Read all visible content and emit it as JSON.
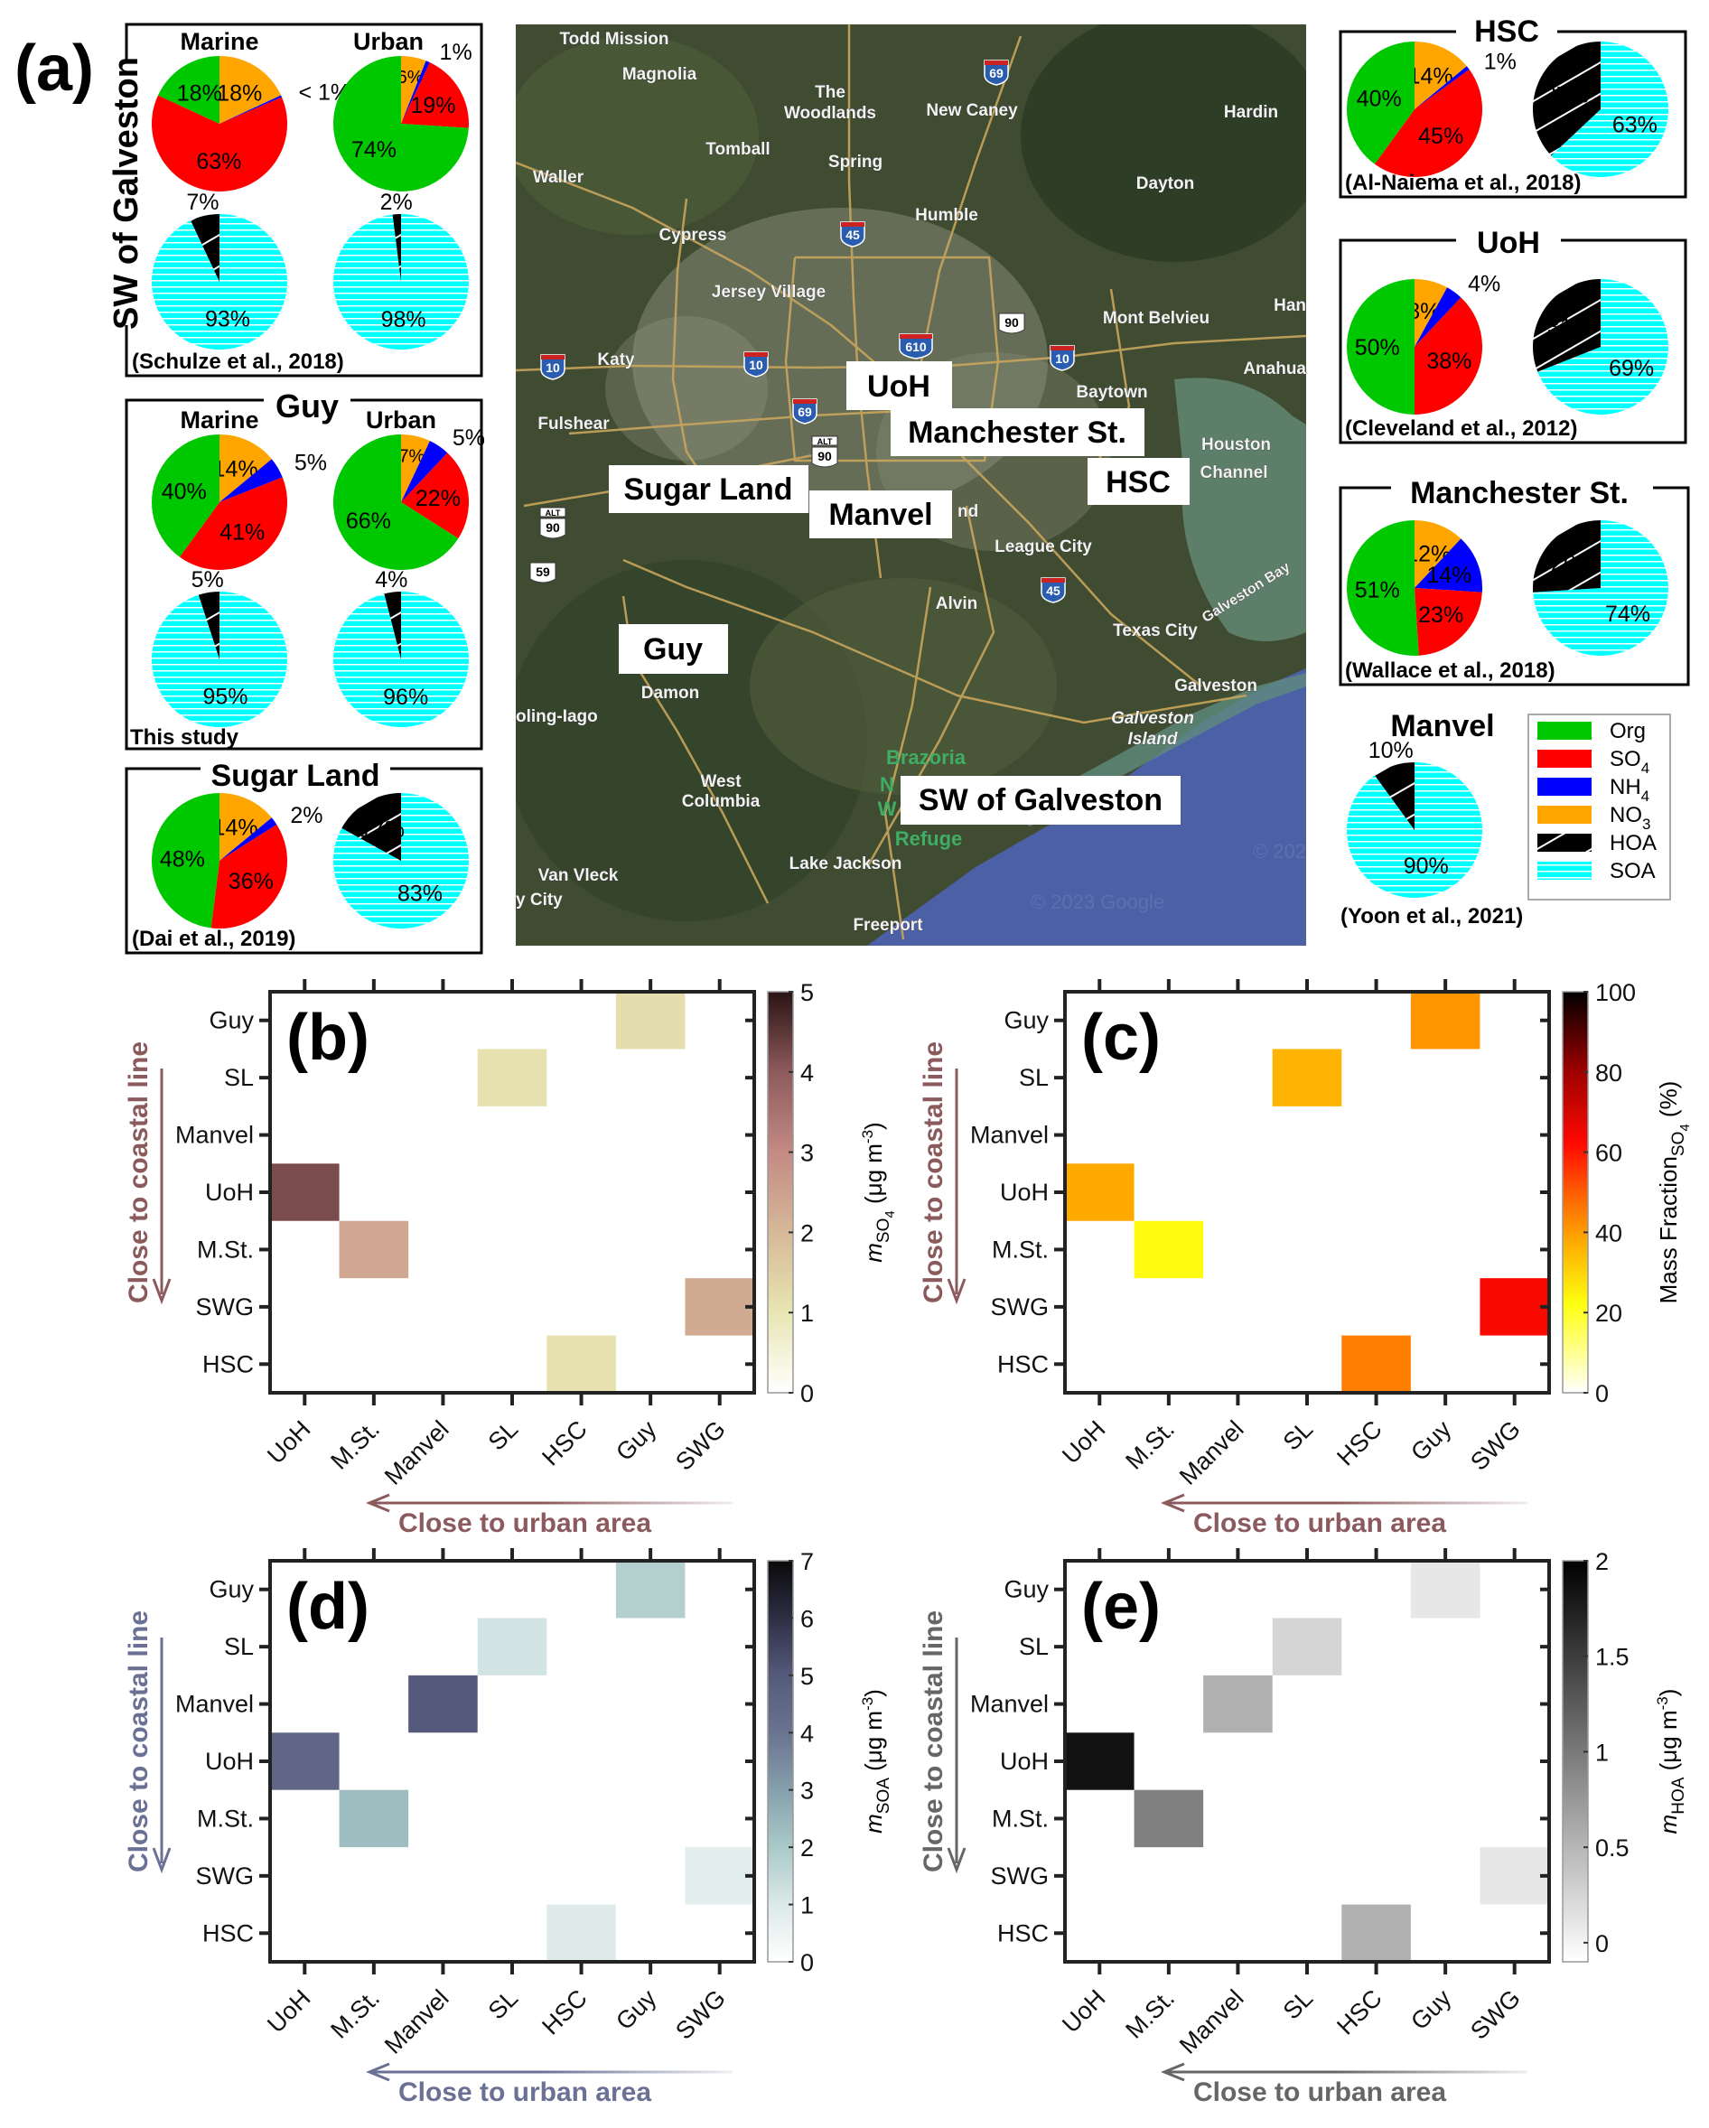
{
  "panel_a": {
    "label": "(a)",
    "boxes": [
      {
        "title": "SW of Galveston",
        "citation": "(Schulze et al., 2018)",
        "subtitles": [
          "Marine",
          "Urban"
        ],
        "pies": [
          {
            "kind": "composition",
            "slices": [
              {
                "species": "NO3",
                "value": 18,
                "label": "18%"
              },
              {
                "species": "NH4",
                "value": 0.5,
                "label": "< 1%"
              },
              {
                "species": "SO4",
                "value": 63,
                "label": "63%"
              },
              {
                "species": "Org",
                "value": 18,
                "label": "18%"
              }
            ]
          },
          {
            "kind": "composition",
            "slices": [
              {
                "species": "NO3",
                "value": 6,
                "label": "6%"
              },
              {
                "species": "NH4",
                "value": 1,
                "label": "1%"
              },
              {
                "species": "SO4",
                "value": 19,
                "label": "19%"
              },
              {
                "species": "Org",
                "value": 74,
                "label": "74%"
              }
            ]
          },
          {
            "kind": "source",
            "slices": [
              {
                "species": "SOA",
                "value": 93,
                "label": "93%"
              },
              {
                "species": "HOA",
                "value": 7,
                "label": "7%"
              }
            ]
          },
          {
            "kind": "source",
            "slices": [
              {
                "species": "SOA",
                "value": 98,
                "label": "98%"
              },
              {
                "species": "HOA",
                "value": 2,
                "label": "2%"
              }
            ]
          }
        ]
      },
      {
        "title": "Guy",
        "citation": "This study",
        "subtitles": [
          "Marine",
          "Urban"
        ],
        "pies": [
          {
            "kind": "composition",
            "slices": [
              {
                "species": "NO3",
                "value": 14,
                "label": "14%"
              },
              {
                "species": "NH4",
                "value": 5,
                "label": "5%"
              },
              {
                "species": "SO4",
                "value": 41,
                "label": "41%"
              },
              {
                "species": "Org",
                "value": 40,
                "label": "40%"
              }
            ]
          },
          {
            "kind": "composition",
            "slices": [
              {
                "species": "NO3",
                "value": 7,
                "label": "7%"
              },
              {
                "species": "NH4",
                "value": 5,
                "label": "5%"
              },
              {
                "species": "SO4",
                "value": 22,
                "label": "22%"
              },
              {
                "species": "Org",
                "value": 66,
                "label": "66%"
              }
            ]
          },
          {
            "kind": "source",
            "slices": [
              {
                "species": "SOA",
                "value": 95,
                "label": "95%"
              },
              {
                "species": "HOA",
                "value": 5,
                "label": "5%"
              }
            ]
          },
          {
            "kind": "source",
            "slices": [
              {
                "species": "SOA",
                "value": 96,
                "label": "96%"
              },
              {
                "species": "HOA",
                "value": 4,
                "label": "4%"
              }
            ]
          }
        ]
      },
      {
        "title": "Sugar Land",
        "citation": "(Dai et al., 2019)",
        "pies": [
          {
            "kind": "composition",
            "slices": [
              {
                "species": "NO3",
                "value": 14,
                "label": "14%"
              },
              {
                "species": "NH4",
                "value": 2,
                "label": "2%"
              },
              {
                "species": "SO4",
                "value": 36,
                "label": "36%"
              },
              {
                "species": "Org",
                "value": 48,
                "label": "48%"
              }
            ]
          },
          {
            "kind": "source",
            "slices": [
              {
                "species": "SOA",
                "value": 83,
                "label": "83%"
              },
              {
                "species": "HOA",
                "value": 17,
                "label": "17%"
              }
            ]
          }
        ]
      },
      {
        "title": "HSC",
        "citation": "(Al-Naiema et al., 2018)",
        "pies": [
          {
            "kind": "composition",
            "slices": [
              {
                "species": "NO3",
                "value": 14,
                "label": "14%"
              },
              {
                "species": "NH4",
                "value": 1,
                "label": "1%"
              },
              {
                "species": "SO4",
                "value": 45,
                "label": "45%"
              },
              {
                "species": "Org",
                "value": 40,
                "label": "40%"
              }
            ]
          },
          {
            "kind": "source",
            "slices": [
              {
                "species": "SOA",
                "value": 63,
                "label": "63%"
              },
              {
                "species": "HOA",
                "value": 37,
                "label": "37%"
              }
            ]
          }
        ]
      },
      {
        "title": "UoH",
        "citation": "(Cleveland et al., 2012)",
        "pies": [
          {
            "kind": "composition",
            "slices": [
              {
                "species": "NO3",
                "value": 8,
                "label": "8%"
              },
              {
                "species": "NH4",
                "value": 4,
                "label": "4%"
              },
              {
                "species": "SO4",
                "value": 38,
                "label": "38%"
              },
              {
                "species": "Org",
                "value": 50,
                "label": "50%"
              }
            ]
          },
          {
            "kind": "source",
            "slices": [
              {
                "species": "SOA",
                "value": 69,
                "label": "69%"
              },
              {
                "species": "HOA",
                "value": 31,
                "label": "31%"
              }
            ]
          }
        ]
      },
      {
        "title": "Manchester St.",
        "citation": "(Wallace et al., 2018)",
        "pies": [
          {
            "kind": "composition",
            "slices": [
              {
                "species": "NO3",
                "value": 12,
                "label": "12%"
              },
              {
                "species": "NH4",
                "value": 14,
                "label": "14%"
              },
              {
                "species": "SO4",
                "value": 23,
                "label": "23%"
              },
              {
                "species": "Org",
                "value": 51,
                "label": "51%"
              }
            ]
          },
          {
            "kind": "source",
            "slices": [
              {
                "species": "SOA",
                "value": 74,
                "label": "74%"
              },
              {
                "species": "HOA",
                "value": 26,
                "label": "26%"
              }
            ]
          }
        ]
      },
      {
        "title": "Manvel",
        "citation": "(Yoon et al., 2021)",
        "pies": [
          {
            "kind": "source",
            "slices": [
              {
                "species": "SOA",
                "value": 90,
                "label": "90%"
              },
              {
                "species": "HOA",
                "value": 10,
                "label": "10%"
              }
            ]
          }
        ]
      }
    ],
    "legend": [
      {
        "name": "Org",
        "sub": "",
        "color": "#00c800"
      },
      {
        "name": "SO",
        "sub": "4",
        "color": "#ff0000"
      },
      {
        "name": "NH",
        "sub": "4",
        "color": "#0000ff"
      },
      {
        "name": "NO",
        "sub": "3",
        "color": "#ffa500"
      },
      {
        "name": "HOA",
        "sub": "",
        "color": "#000000"
      },
      {
        "name": "SOA",
        "sub": "",
        "color": "#00ffff"
      }
    ],
    "species_colors": {
      "Org": "#00c800",
      "SO4": "#ff0000",
      "NH4": "#0000ff",
      "NO3": "#ffa500",
      "HOA": "#000000",
      "SOA": "#00ffff"
    }
  },
  "map": {
    "sites": [
      "UoH",
      "Manchester St.",
      "HSC",
      "Sugar Land",
      "Manvel",
      "Guy",
      "SW of Galveston"
    ],
    "places": [
      "Todd Mission",
      "Magnolia",
      "The",
      "Woodlands",
      "New Caney",
      "Hardin",
      "Tomball",
      "Spring",
      "Waller",
      "Dayton",
      "Humble",
      "Cypress",
      "Jersey Village",
      "Mont Belvieu",
      "Han",
      "Katy",
      "Anahua",
      "Baytown",
      "Fulshear",
      "Houston",
      "Channel",
      "League City",
      "Alvin",
      "Galveston Bay",
      "Texas City",
      "Galveston",
      "Damon",
      "oling-Iago",
      "Galveston",
      "Island",
      "Brazoria",
      "N",
      "W",
      "Refuge",
      "West",
      "Columbia",
      "Van Vleck",
      "Lake Jackson",
      "y City",
      "Freeport",
      "nd"
    ],
    "shields": [
      "69",
      "45",
      "610",
      "10",
      "10",
      "10",
      "69",
      "ALT",
      "90",
      "90",
      "ALT",
      "90",
      "59",
      "45"
    ],
    "copyright": "© 2023 Google",
    "copyright2": "© 202"
  },
  "chart_data": [
    {
      "type": "heatmap",
      "title": "(b)",
      "rows": [
        "Guy",
        "SL",
        "Manvel",
        "UoH",
        "M.St.",
        "SWG",
        "HSC"
      ],
      "cols": [
        "UoH",
        "M.St.",
        "Manvel",
        "SL",
        "HSC",
        "Guy",
        "SWG"
      ],
      "cells": [
        {
          "row": "Guy",
          "col": "Guy",
          "value": 1.2
        },
        {
          "row": "SL",
          "col": "SL",
          "value": 1.1
        },
        {
          "row": "UoH",
          "col": "UoH",
          "value": 4.2
        },
        {
          "row": "M.St.",
          "col": "M.St.",
          "value": 2.4
        },
        {
          "row": "SWG",
          "col": "SWG",
          "value": 2.3
        },
        {
          "row": "HSC",
          "col": "HSC",
          "value": 1.1
        }
      ],
      "crange": [
        0,
        5
      ],
      "cticks": [
        "0",
        "1",
        "2",
        "3",
        "4",
        "5"
      ],
      "ctick_values": [
        0,
        1,
        2,
        3,
        4,
        5
      ],
      "colormap": [
        [
          0,
          "#ffffff"
        ],
        [
          1,
          "#e8e6b2"
        ],
        [
          2,
          "#d6b898"
        ],
        [
          3,
          "#c48a84"
        ],
        [
          4,
          "#8e5a5c"
        ],
        [
          5,
          "#2a1414"
        ]
      ],
      "cbar_label": {
        "m": "m",
        "sub": "SO",
        "subsub": "4",
        "units": "(μg m",
        "sup": "-3",
        "close": ")"
      },
      "ylabel": "Close to coastal line",
      "xlabel": "Close to urban area",
      "arrow_color": "#8b5a5c"
    },
    {
      "type": "heatmap",
      "title": "(c)",
      "rows": [
        "Guy",
        "SL",
        "Manvel",
        "UoH",
        "M.St.",
        "SWG",
        "HSC"
      ],
      "cols": [
        "UoH",
        "M.St.",
        "Manvel",
        "SL",
        "HSC",
        "Guy",
        "SWG"
      ],
      "cells": [
        {
          "row": "Guy",
          "col": "Guy",
          "value": 41
        },
        {
          "row": "SL",
          "col": "SL",
          "value": 36
        },
        {
          "row": "UoH",
          "col": "UoH",
          "value": 38
        },
        {
          "row": "M.St.",
          "col": "M.St.",
          "value": 23
        },
        {
          "row": "SWG",
          "col": "SWG",
          "value": 63
        },
        {
          "row": "HSC",
          "col": "HSC",
          "value": 45
        }
      ],
      "crange": [
        0,
        100
      ],
      "cticks": [
        "0",
        "20",
        "40",
        "60",
        "80",
        "100"
      ],
      "ctick_values": [
        0,
        20,
        40,
        60,
        80,
        100
      ],
      "colormap": [
        [
          0,
          "#ffffff"
        ],
        [
          22,
          "#ffff10"
        ],
        [
          38,
          "#ffa800"
        ],
        [
          48,
          "#ff6a00"
        ],
        [
          62,
          "#ff0a00"
        ],
        [
          80,
          "#a00000"
        ],
        [
          100,
          "#000000"
        ]
      ],
      "cbar_label": {
        "m": "Mass Fraction",
        "sub": "SO",
        "subsub": "4",
        "units": "(%)",
        "sup": "",
        "close": ""
      },
      "ylabel": "Close to coastal line",
      "xlabel": "Close to urban area",
      "arrow_color": "#8b5a5c"
    },
    {
      "type": "heatmap",
      "title": "(d)",
      "rows": [
        "Guy",
        "SL",
        "Manvel",
        "UoH",
        "M.St.",
        "SWG",
        "HSC"
      ],
      "cols": [
        "UoH",
        "M.St.",
        "Manvel",
        "SL",
        "HSC",
        "Guy",
        "SWG"
      ],
      "cells": [
        {
          "row": "Guy",
          "col": "Guy",
          "value": 1.8
        },
        {
          "row": "SL",
          "col": "SL",
          "value": 1.2
        },
        {
          "row": "Manvel",
          "col": "Manvel",
          "value": 5.0
        },
        {
          "row": "UoH",
          "col": "UoH",
          "value": 4.5
        },
        {
          "row": "M.St.",
          "col": "M.St.",
          "value": 2.3
        },
        {
          "row": "SWG",
          "col": "SWG",
          "value": 0.8
        },
        {
          "row": "HSC",
          "col": "HSC",
          "value": 0.9
        }
      ],
      "crange": [
        0,
        7
      ],
      "cticks": [
        "0",
        "1",
        "2",
        "3",
        "4",
        "5",
        "6",
        "7"
      ],
      "ctick_values": [
        0,
        1,
        2,
        3,
        4,
        5,
        6,
        7
      ],
      "colormap": [
        [
          0,
          "#ffffff"
        ],
        [
          1,
          "#dbe9e8"
        ],
        [
          2,
          "#a9c9c8"
        ],
        [
          3,
          "#86a0ac"
        ],
        [
          4,
          "#6a7390"
        ],
        [
          5,
          "#555a7c"
        ],
        [
          6,
          "#2e2f44"
        ],
        [
          7,
          "#0a0a0a"
        ]
      ],
      "cbar_label": {
        "m": "m",
        "sub": "SOA",
        "subsub": "",
        "units": "(μg m",
        "sup": "-3",
        "close": ")"
      },
      "ylabel": "Close to coastal line",
      "xlabel": "Close to urban area",
      "arrow_color": "#6a7194"
    },
    {
      "type": "heatmap",
      "title": "(e)",
      "rows": [
        "Guy",
        "SL",
        "Manvel",
        "UoH",
        "M.St.",
        "SWG",
        "HSC"
      ],
      "cols": [
        "UoH",
        "M.St.",
        "Manvel",
        "SL",
        "HSC",
        "Guy",
        "SWG"
      ],
      "cells": [
        {
          "row": "Guy",
          "col": "Guy",
          "value": 0.1
        },
        {
          "row": "SL",
          "col": "SL",
          "value": 0.25
        },
        {
          "row": "Manvel",
          "col": "Manvel",
          "value": 0.55
        },
        {
          "row": "UoH",
          "col": "UoH",
          "value": 1.85
        },
        {
          "row": "M.St.",
          "col": "M.St.",
          "value": 0.95
        },
        {
          "row": "SWG",
          "col": "SWG",
          "value": 0.1
        },
        {
          "row": "HSC",
          "col": "HSC",
          "value": 0.55
        }
      ],
      "crange": [
        -0.1,
        2
      ],
      "cticks": [
        "0",
        "0.5",
        "1",
        "1.5",
        "2"
      ],
      "ctick_values": [
        0,
        0.5,
        1,
        1.5,
        2
      ],
      "colormap": [
        [
          -0.1,
          "#ffffff"
        ],
        [
          2,
          "#000000"
        ]
      ],
      "cbar_label": {
        "m": "m",
        "sub": "HOA",
        "subsub": "",
        "units": "(μg m",
        "sup": "-3",
        "close": ")"
      },
      "ylabel": "Close to coastal line",
      "xlabel": "Close to urban area",
      "arrow_color": "#666666"
    }
  ]
}
